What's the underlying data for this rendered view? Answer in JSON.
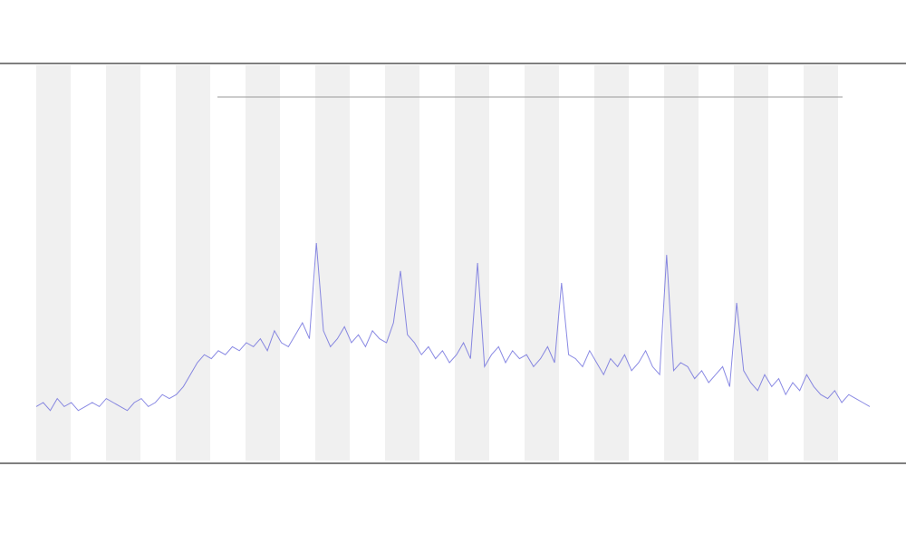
{
  "chart_data": {
    "type": "line",
    "color": "#6b6bdc",
    "ylim": [
      0,
      100
    ],
    "grid": false,
    "values": [
      14,
      15,
      13,
      16,
      14,
      15,
      13,
      14,
      15,
      14,
      16,
      15,
      14,
      13,
      15,
      16,
      14,
      15,
      17,
      16,
      17,
      19,
      22,
      25,
      27,
      26,
      28,
      27,
      29,
      28,
      30,
      29,
      31,
      28,
      33,
      30,
      29,
      32,
      35,
      31,
      55,
      33,
      29,
      31,
      34,
      30,
      32,
      29,
      33,
      31,
      30,
      35,
      48,
      32,
      30,
      27,
      29,
      26,
      28,
      25,
      27,
      30,
      26,
      50,
      24,
      27,
      29,
      25,
      28,
      26,
      27,
      24,
      26,
      29,
      25,
      45,
      27,
      26,
      24,
      28,
      25,
      22,
      26,
      24,
      27,
      23,
      25,
      28,
      24,
      22,
      52,
      23,
      25,
      24,
      21,
      23,
      20,
      22,
      24,
      19,
      40,
      23,
      20,
      18,
      22,
      19,
      21,
      17,
      20,
      18,
      22,
      19,
      17,
      16,
      18,
      15,
      17,
      16,
      15,
      14
    ]
  }
}
